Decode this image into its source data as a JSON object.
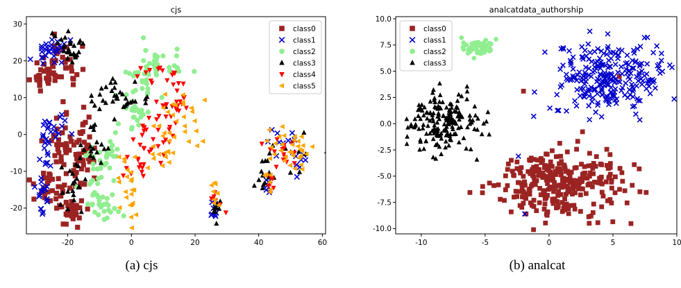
{
  "captions": {
    "a": "(a) cjs",
    "b": "(b) analcat"
  },
  "chart_data": [
    {
      "type": "scatter",
      "title": "cjs",
      "xlabel": "",
      "ylabel": "",
      "xlim": [
        -33,
        61
      ],
      "ylim": [
        -27,
        32
      ],
      "xticks": [
        -20,
        0,
        20,
        40,
        60
      ],
      "yticks": [
        -20,
        -10,
        0,
        10,
        20,
        30
      ],
      "grid": false,
      "legend": "top-right",
      "series": [
        {
          "name": "class0",
          "color": "#9b2423",
          "marker": "square",
          "clusters": [
            {
              "cx": -27,
              "cy": 17,
              "sx": 2.0,
              "sy": 3,
              "n": 30
            },
            {
              "cx": -20,
              "cy": 18,
              "sx": 2.0,
              "sy": 3,
              "n": 18
            },
            {
              "cx": -22,
              "cy": -2,
              "sx": 2.5,
              "sy": 4,
              "n": 30
            },
            {
              "cx": -16,
              "cy": -8,
              "sx": 2.0,
              "sy": 4,
              "n": 30
            },
            {
              "cx": -25,
              "cy": -15,
              "sx": 2.5,
              "sy": 3,
              "n": 30
            },
            {
              "cx": -19,
              "cy": -21,
              "sx": 2.5,
              "sy": 2,
              "n": 30
            },
            {
              "cx": -14,
              "cy": 0,
              "sx": 2.0,
              "sy": 4,
              "n": 18
            },
            {
              "cx": -23,
              "cy": 24,
              "sx": 1.5,
              "sy": 2,
              "n": 10
            }
          ]
        },
        {
          "name": "class1",
          "color": "#0000cc",
          "marker": "x",
          "clusters": [
            {
              "cx": -25,
              "cy": 23,
              "sx": 2.5,
              "sy": 1.5,
              "n": 30
            },
            {
              "cx": -27,
              "cy": -4,
              "sx": 1.0,
              "sy": 5,
              "n": 20
            },
            {
              "cx": -28,
              "cy": -15,
              "sx": 1.2,
              "sy": 3,
              "n": 18
            },
            {
              "cx": -22,
              "cy": 2,
              "sx": 1.5,
              "sy": 2,
              "n": 10
            },
            {
              "cx": 26,
              "cy": -21,
              "sx": 0.8,
              "sy": 1,
              "n": 8
            },
            {
              "cx": 47,
              "cy": -1,
              "sx": 2.0,
              "sy": 2,
              "n": 10
            },
            {
              "cx": 53,
              "cy": -7,
              "sx": 1.5,
              "sy": 1.5,
              "n": 8
            },
            {
              "cx": 42,
              "cy": -14,
              "sx": 1.0,
              "sy": 1.5,
              "n": 6
            }
          ]
        },
        {
          "name": "class2",
          "color": "#90ee90",
          "marker": "circle",
          "clusters": [
            {
              "cx": 10,
              "cy": 19,
              "sx": 3.5,
              "sy": 2.5,
              "n": 30
            },
            {
              "cx": 4,
              "cy": 13,
              "sx": 4.0,
              "sy": 3,
              "n": 25
            },
            {
              "cx": 0,
              "cy": 6,
              "sx": 3.0,
              "sy": 2,
              "n": 20
            },
            {
              "cx": -8,
              "cy": -5,
              "sx": 3.0,
              "sy": 3,
              "n": 25
            },
            {
              "cx": -9,
              "cy": -19,
              "sx": 3.0,
              "sy": 2.5,
              "n": 25
            },
            {
              "cx": -12,
              "cy": -12,
              "sx": 2.0,
              "sy": 3,
              "n": 15
            }
          ]
        },
        {
          "name": "class3",
          "color": "#000000",
          "marker": "triangle-up",
          "clusters": [
            {
              "cx": -21,
              "cy": 25,
              "sx": 2.0,
              "sy": 2,
              "n": 18
            },
            {
              "cx": -18,
              "cy": 23,
              "sx": 1.0,
              "sy": 2.5,
              "n": 10
            },
            {
              "cx": -6,
              "cy": 11,
              "sx": 3.0,
              "sy": 3,
              "n": 22
            },
            {
              "cx": -12,
              "cy": -3,
              "sx": 2.0,
              "sy": 3.5,
              "n": 18
            },
            {
              "cx": -18,
              "cy": -12,
              "sx": 2.0,
              "sy": 4,
              "n": 20
            },
            {
              "cx": 1,
              "cy": 9,
              "sx": 3.5,
              "sy": 1.5,
              "n": 12
            },
            {
              "cx": 26,
              "cy": -20,
              "sx": 1.0,
              "sy": 1.5,
              "n": 10
            },
            {
              "cx": 42,
              "cy": -13,
              "sx": 1.5,
              "sy": 1.5,
              "n": 10
            },
            {
              "cx": 49,
              "cy": -5,
              "sx": 4.0,
              "sy": 3,
              "n": 12
            }
          ]
        },
        {
          "name": "class4",
          "color": "#ff0000",
          "marker": "triangle-down",
          "clusters": [
            {
              "cx": 14,
              "cy": 8,
              "sx": 3.0,
              "sy": 3,
              "n": 25
            },
            {
              "cx": 8,
              "cy": 17,
              "sx": 3.0,
              "sy": 2,
              "n": 12
            },
            {
              "cx": 7,
              "cy": -1,
              "sx": 3.0,
              "sy": 3,
              "n": 20
            },
            {
              "cx": 2,
              "cy": -7,
              "sx": 2.5,
              "sy": 2.5,
              "n": 15
            },
            {
              "cx": 47,
              "cy": -5,
              "sx": 2.5,
              "sy": 3,
              "n": 15
            },
            {
              "cx": 43,
              "cy": -12,
              "sx": 1.0,
              "sy": 1.5,
              "n": 6
            },
            {
              "cx": 26,
              "cy": -18,
              "sx": 0.8,
              "sy": 2,
              "n": 6
            }
          ]
        },
        {
          "name": "class5",
          "color": "#ffa500",
          "marker": "triangle-left",
          "clusters": [
            {
              "cx": 16,
              "cy": 5,
              "sx": 3.0,
              "sy": 4,
              "n": 20
            },
            {
              "cx": 11,
              "cy": -3,
              "sx": 4.0,
              "sy": 3,
              "n": 20
            },
            {
              "cx": -1,
              "cy": -13,
              "sx": 1.5,
              "sy": 6,
              "n": 25
            },
            {
              "cx": 48,
              "cy": -3,
              "sx": 3.0,
              "sy": 3,
              "n": 25
            },
            {
              "cx": 26,
              "cy": -17,
              "sx": 0.8,
              "sy": 2.5,
              "n": 8
            },
            {
              "cx": 42,
              "cy": -12,
              "sx": 1.0,
              "sy": 2,
              "n": 6
            },
            {
              "cx": 53,
              "cy": -6,
              "sx": 1.5,
              "sy": 2,
              "n": 8
            }
          ]
        }
      ]
    },
    {
      "type": "scatter",
      "title": "analcatdata_authorship",
      "xlabel": "",
      "ylabel": "",
      "xlim": [
        -12,
        10
      ],
      "ylim": [
        -10.5,
        10.2
      ],
      "xticks": [
        -10,
        -5,
        0,
        5,
        10
      ],
      "yticks": [
        -10.0,
        -7.5,
        -5.0,
        -2.5,
        0.0,
        2.5,
        5.0,
        7.5,
        10.0
      ],
      "grid": false,
      "legend": "top-left",
      "series": [
        {
          "name": "class0",
          "color": "#9b2423",
          "marker": "square",
          "clusters": [
            {
              "cx": 0.5,
              "cy": -5.6,
              "sx": 2.5,
              "sy": 1.5,
              "n": 300
            }
          ],
          "outliers": [
            [
              -2.0,
              3.1
            ],
            [
              5.5,
              4.5
            ],
            [
              -1.8,
              -8.6
            ]
          ]
        },
        {
          "name": "class1",
          "color": "#0000cc",
          "marker": "x",
          "clusters": [
            {
              "cx": 4.8,
              "cy": 4.4,
              "sx": 2.2,
              "sy": 1.8,
              "n": 260
            }
          ],
          "outliers": [
            [
              -2.4,
              -3.1
            ],
            [
              -1.2,
              0.7
            ],
            [
              -1.9,
              -8.6
            ]
          ]
        },
        {
          "name": "class2",
          "color": "#90ee90",
          "marker": "circle",
          "clusters": [
            {
              "cx": -5.6,
              "cy": 7.3,
              "sx": 0.6,
              "sy": 0.35,
              "n": 60
            }
          ]
        },
        {
          "name": "class3",
          "color": "#000000",
          "marker": "triangle-up",
          "clusters": [
            {
              "cx": -8.2,
              "cy": 0.2,
              "sx": 1.3,
              "sy": 1.3,
              "n": 180
            }
          ]
        }
      ]
    }
  ]
}
